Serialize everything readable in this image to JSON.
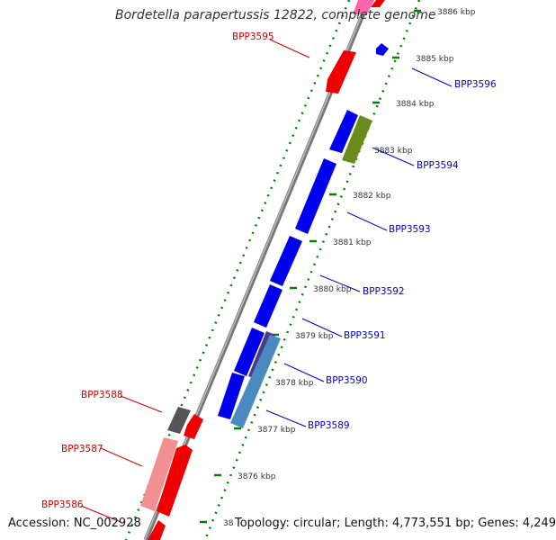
{
  "title": "Bordetella parapertussis 12822, complete genome",
  "accession": "Accession: NC_002928",
  "topology": "Topology: circular; Length: 4,773,551 bp; Genes: 4,249",
  "tick_labels": [
    "3886 kbp",
    "3885 kbp",
    "3884 kbp",
    "3883 kbp",
    "3882 kbp",
    "3881 kbp",
    "3880 kbp",
    "3879 kbp",
    "3878 kbp",
    "3877 kbp",
    "3876 kbp",
    "38"
  ],
  "genes_forward": [
    "BPP3596",
    "BPP3594",
    "BPP3593",
    "BPP3592",
    "BPP3591",
    "BPP3590",
    "BPP3589"
  ],
  "genes_reverse": [
    "BPP3595",
    "BPP3588",
    "BPP3587",
    "BPP3586"
  ],
  "colors": {
    "forward_label": "#0000cc",
    "reverse_label": "#cc0000",
    "forward_gene": "#0000ff",
    "reverse_gene": "#ff0000",
    "tick_green": "#008000",
    "backbone": "#888888"
  }
}
